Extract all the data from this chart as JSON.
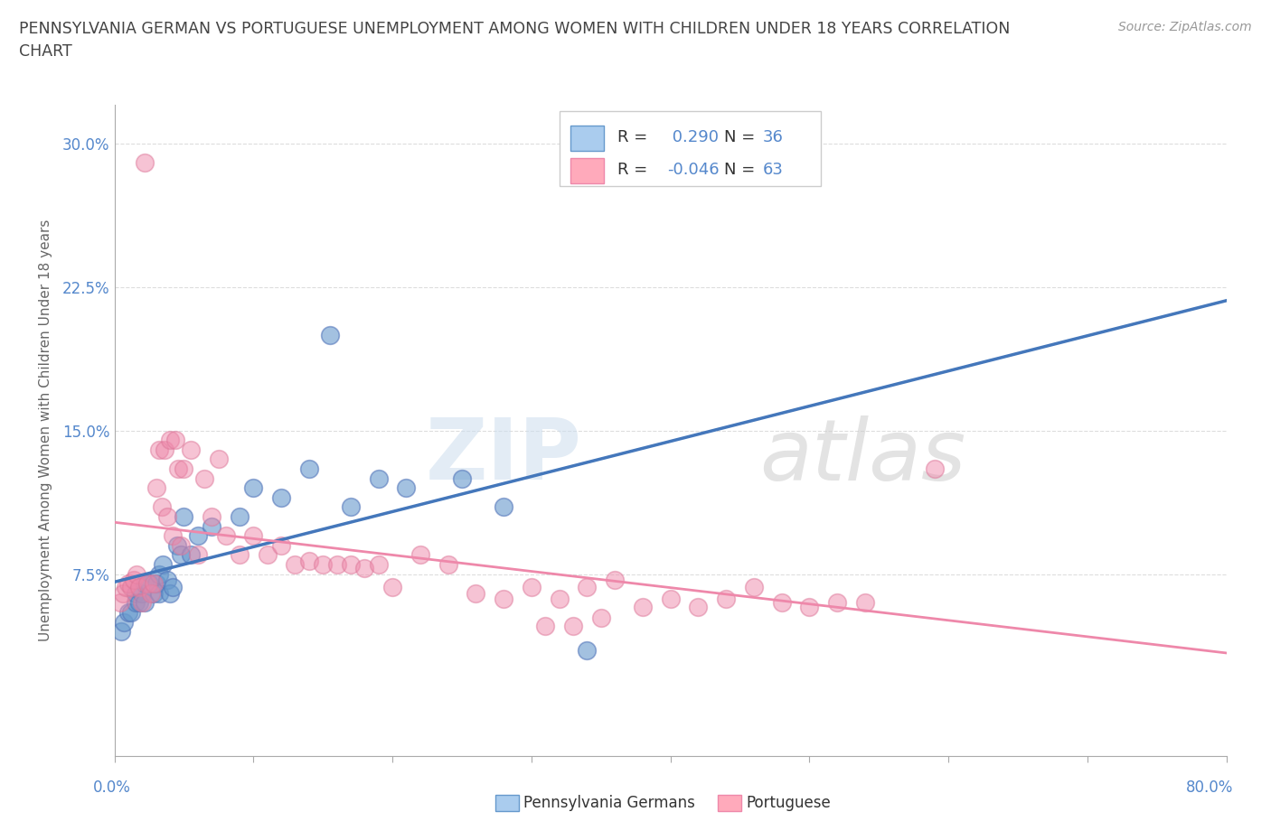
{
  "title_line1": "PENNSYLVANIA GERMAN VS PORTUGUESE UNEMPLOYMENT AMONG WOMEN WITH CHILDREN UNDER 18 YEARS CORRELATION",
  "title_line2": "CHART",
  "source": "Source: ZipAtlas.com",
  "ylabel": "Unemployment Among Women with Children Under 18 years",
  "xlim": [
    0.0,
    0.8
  ],
  "ylim": [
    -0.02,
    0.32
  ],
  "yticks": [
    0.0,
    0.075,
    0.15,
    0.225,
    0.3
  ],
  "ytick_labels": [
    "",
    "7.5%",
    "15.0%",
    "22.5%",
    "30.0%"
  ],
  "xtick_positions": [
    0.0,
    0.1,
    0.2,
    0.3,
    0.4,
    0.5,
    0.6,
    0.7,
    0.8
  ],
  "watermark_zip": "ZIP",
  "watermark_atlas": "atlas",
  "blue_color": "#6699CC",
  "pink_color": "#EE88AA",
  "blue_edge": "#5577BB",
  "pink_edge": "#DD7799",
  "line_blue": "#4477BB",
  "line_pink": "#EE88AA",
  "bg_color": "#FFFFFF",
  "grid_color": "#DDDDDD",
  "title_color": "#444444",
  "tick_label_color": "#5588CC",
  "blue_legend_fill": "#AACCEE",
  "blue_legend_edge": "#6699CC",
  "pink_legend_fill": "#FFAABB",
  "pink_legend_edge": "#EE88AA",
  "legend_text_color": "#333333",
  "legend_val_color": "#5588CC",
  "blue_x": [
    0.005,
    0.007,
    0.01,
    0.012,
    0.015,
    0.015,
    0.018,
    0.02,
    0.022,
    0.022,
    0.025,
    0.028,
    0.03,
    0.032,
    0.032,
    0.035,
    0.038,
    0.04,
    0.042,
    0.045,
    0.048,
    0.05,
    0.055,
    0.06,
    0.07,
    0.09,
    0.1,
    0.12,
    0.14,
    0.155,
    0.17,
    0.19,
    0.21,
    0.25,
    0.28,
    0.34
  ],
  "blue_y": [
    0.045,
    0.05,
    0.055,
    0.055,
    0.06,
    0.065,
    0.06,
    0.065,
    0.07,
    0.06,
    0.07,
    0.065,
    0.07,
    0.075,
    0.065,
    0.08,
    0.072,
    0.065,
    0.068,
    0.09,
    0.085,
    0.105,
    0.085,
    0.095,
    0.1,
    0.105,
    0.12,
    0.115,
    0.13,
    0.2,
    0.11,
    0.125,
    0.12,
    0.125,
    0.11,
    0.035
  ],
  "pink_x": [
    0.004,
    0.006,
    0.008,
    0.01,
    0.012,
    0.014,
    0.016,
    0.018,
    0.02,
    0.022,
    0.024,
    0.026,
    0.028,
    0.03,
    0.032,
    0.034,
    0.036,
    0.038,
    0.04,
    0.042,
    0.044,
    0.046,
    0.048,
    0.05,
    0.055,
    0.06,
    0.065,
    0.07,
    0.075,
    0.08,
    0.09,
    0.1,
    0.11,
    0.12,
    0.13,
    0.14,
    0.15,
    0.16,
    0.17,
    0.18,
    0.19,
    0.2,
    0.22,
    0.24,
    0.26,
    0.28,
    0.3,
    0.32,
    0.34,
    0.36,
    0.38,
    0.4,
    0.42,
    0.44,
    0.46,
    0.48,
    0.5,
    0.52,
    0.54,
    0.59,
    0.31,
    0.33,
    0.35
  ],
  "pink_y": [
    0.06,
    0.065,
    0.068,
    0.07,
    0.068,
    0.072,
    0.075,
    0.068,
    0.06,
    0.29,
    0.07,
    0.065,
    0.07,
    0.12,
    0.14,
    0.11,
    0.14,
    0.105,
    0.145,
    0.095,
    0.145,
    0.13,
    0.09,
    0.13,
    0.14,
    0.085,
    0.125,
    0.105,
    0.135,
    0.095,
    0.085,
    0.095,
    0.085,
    0.09,
    0.08,
    0.082,
    0.08,
    0.08,
    0.08,
    0.078,
    0.08,
    0.068,
    0.085,
    0.08,
    0.065,
    0.062,
    0.068,
    0.062,
    0.068,
    0.072,
    0.058,
    0.062,
    0.058,
    0.062,
    0.068,
    0.06,
    0.058,
    0.06,
    0.06,
    0.13,
    0.048,
    0.048,
    0.052
  ],
  "blue_line_x_start": 0.0,
  "blue_line_x_end": 0.8,
  "pink_line_x_start": 0.0,
  "pink_line_x_end": 0.8
}
